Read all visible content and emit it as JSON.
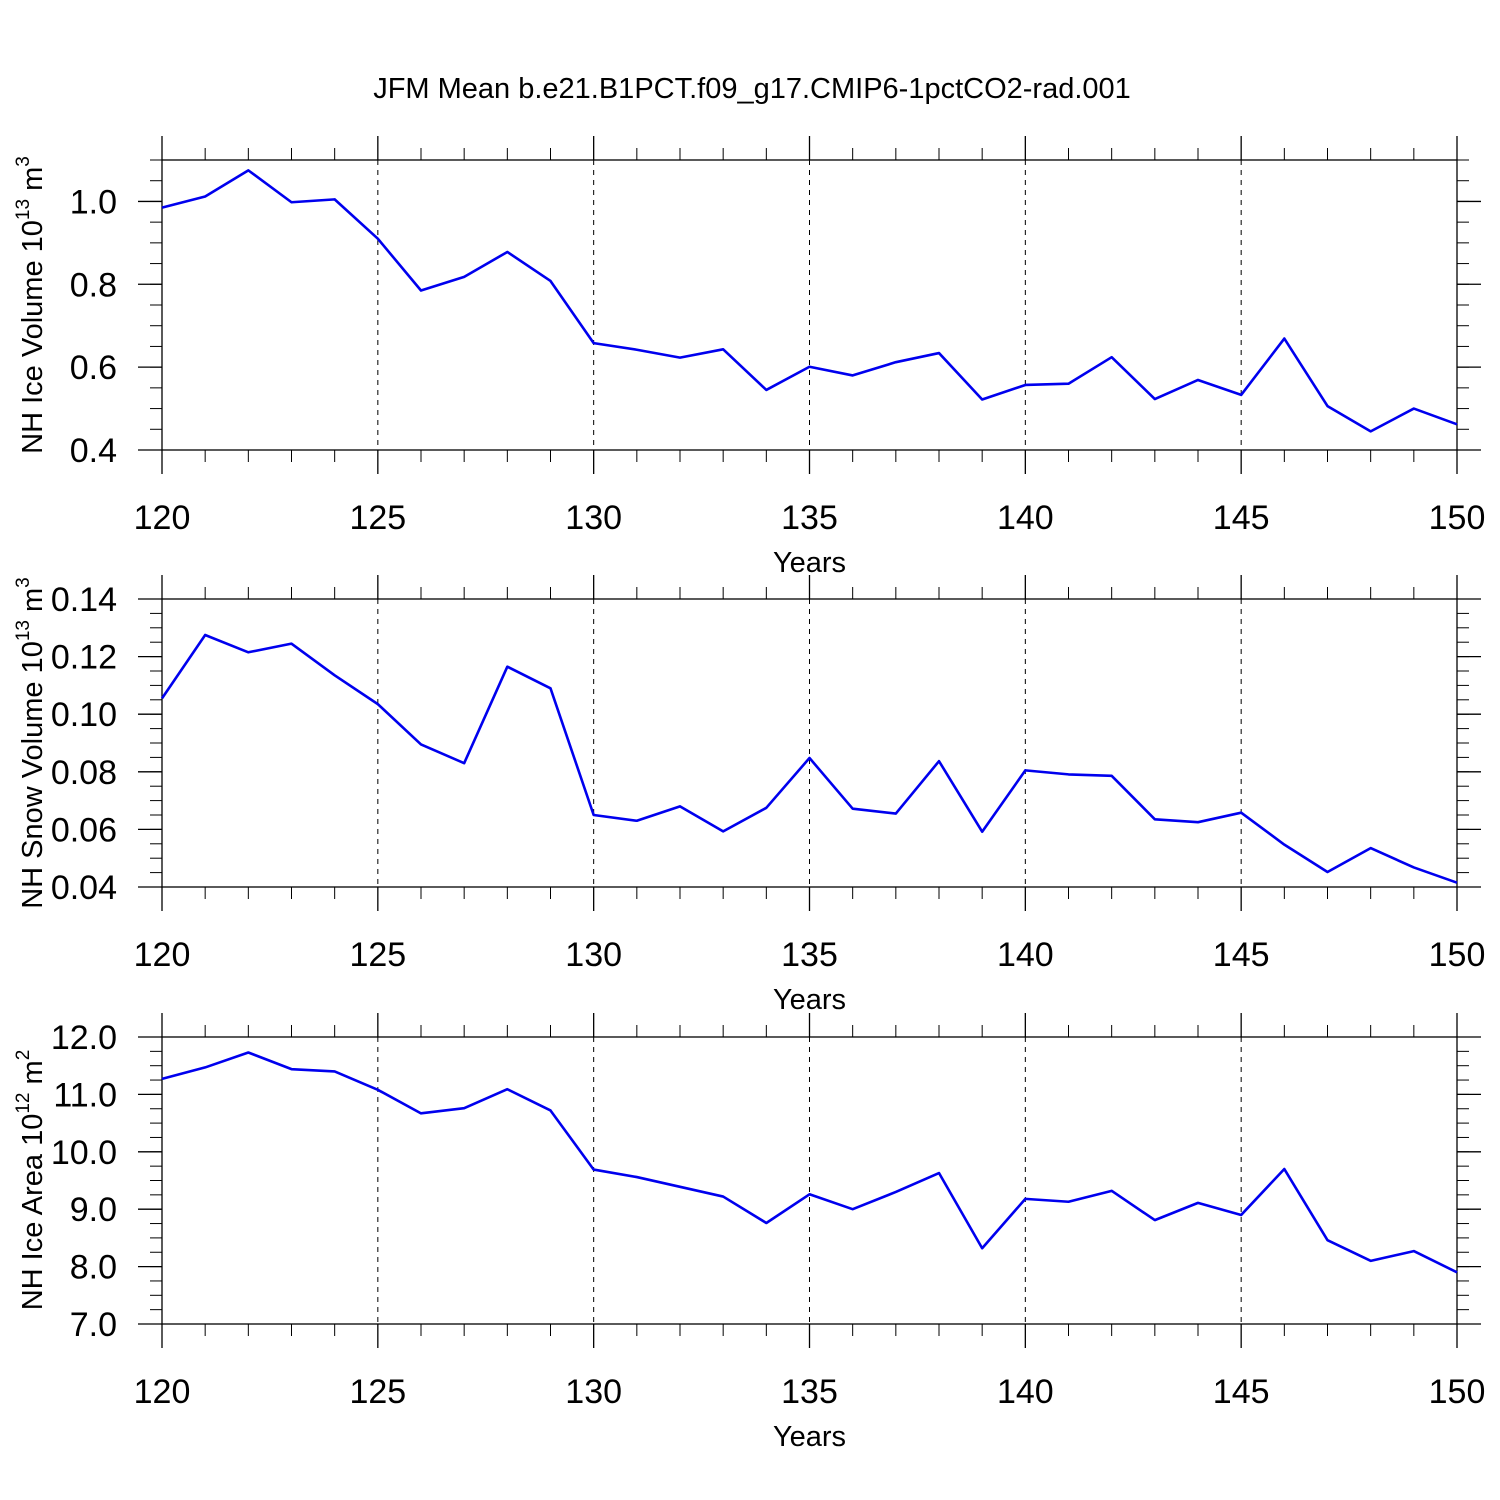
{
  "title": "JFM Mean b.e21.B1PCT.f09_g17.CMIP6-1pctCO2-rad.001",
  "chart_data": [
    {
      "type": "line",
      "xlabel": "Years",
      "ylabel": {
        "text": "NH Ice Volume 10",
        "sup": "13",
        "unit": " m",
        "unit_sup": "3"
      },
      "xlim": [
        120,
        150
      ],
      "ylim": [
        0.4,
        1.1
      ],
      "x_ticks": [
        120,
        125,
        130,
        135,
        140,
        145,
        150
      ],
      "x_tick_labels": [
        "120",
        "125",
        "130",
        "135",
        "140",
        "145",
        "150"
      ],
      "y_ticks": [
        0.4,
        0.6,
        0.8,
        1.0
      ],
      "y_tick_labels": [
        "0.4",
        "0.6",
        "0.8",
        "1.0"
      ],
      "y_minor_step": 0.05,
      "grid": "dashed vertical at major x ticks",
      "color": "#0000ee",
      "x": [
        120,
        121,
        122,
        123,
        124,
        125,
        126,
        127,
        128,
        129,
        130,
        131,
        132,
        133,
        134,
        135,
        136,
        137,
        138,
        139,
        140,
        141,
        142,
        143,
        144,
        145,
        146,
        147,
        148,
        149,
        150
      ],
      "values": [
        0.985,
        1.012,
        1.075,
        0.998,
        1.005,
        0.91,
        0.785,
        0.818,
        0.878,
        0.808,
        0.658,
        0.642,
        0.623,
        0.643,
        0.545,
        0.601,
        0.58,
        0.612,
        0.634,
        0.522,
        0.557,
        0.56,
        0.624,
        0.523,
        0.569,
        0.533,
        0.669,
        0.506,
        0.445,
        0.5,
        0.462
      ]
    },
    {
      "type": "line",
      "xlabel": "Years",
      "ylabel": {
        "text": "NH Snow Volume 10",
        "sup": "13",
        "unit": " m",
        "unit_sup": "3"
      },
      "xlim": [
        120,
        150
      ],
      "ylim": [
        0.04,
        0.14
      ],
      "x_ticks": [
        120,
        125,
        130,
        135,
        140,
        145,
        150
      ],
      "x_tick_labels": [
        "120",
        "125",
        "130",
        "135",
        "140",
        "145",
        "150"
      ],
      "y_ticks": [
        0.04,
        0.06,
        0.08,
        0.1,
        0.12,
        0.14
      ],
      "y_tick_labels": [
        "0.04",
        "0.06",
        "0.08",
        "0.10",
        "0.12",
        "0.14"
      ],
      "y_minor_step": 0.005,
      "grid": "dashed vertical at major x ticks",
      "color": "#0000ee",
      "x": [
        120,
        121,
        122,
        123,
        124,
        125,
        126,
        127,
        128,
        129,
        130,
        131,
        132,
        133,
        134,
        135,
        136,
        137,
        138,
        139,
        140,
        141,
        142,
        143,
        144,
        145,
        146,
        147,
        148,
        149,
        150
      ],
      "values": [
        0.1055,
        0.1275,
        0.1215,
        0.1245,
        0.1135,
        0.1035,
        0.0895,
        0.083,
        0.1165,
        0.109,
        0.065,
        0.063,
        0.068,
        0.0593,
        0.0675,
        0.0848,
        0.0672,
        0.0655,
        0.0837,
        0.0592,
        0.0805,
        0.0791,
        0.0786,
        0.0635,
        0.0625,
        0.0658,
        0.0547,
        0.0452,
        0.0535,
        0.0468,
        0.0415
      ]
    },
    {
      "type": "line",
      "xlabel": "Years",
      "ylabel": {
        "text": "NH Ice Area 10",
        "sup": "12",
        "unit": " m",
        "unit_sup": "2"
      },
      "xlim": [
        120,
        150
      ],
      "ylim": [
        7.0,
        12.0
      ],
      "x_ticks": [
        120,
        125,
        130,
        135,
        140,
        145,
        150
      ],
      "x_tick_labels": [
        "120",
        "125",
        "130",
        "135",
        "140",
        "145",
        "150"
      ],
      "y_ticks": [
        7.0,
        8.0,
        9.0,
        10.0,
        11.0,
        12.0
      ],
      "y_tick_labels": [
        "7.0",
        "8.0",
        "9.0",
        "10.0",
        "11.0",
        "12.0"
      ],
      "y_minor_step": 0.25,
      "grid": "dashed vertical at major x ticks",
      "color": "#0000ee",
      "x": [
        120,
        121,
        122,
        123,
        124,
        125,
        126,
        127,
        128,
        129,
        130,
        131,
        132,
        133,
        134,
        135,
        136,
        137,
        138,
        139,
        140,
        141,
        142,
        143,
        144,
        145,
        146,
        147,
        148,
        149,
        150
      ],
      "values": [
        11.27,
        11.47,
        11.73,
        11.44,
        11.4,
        11.08,
        10.67,
        10.76,
        11.09,
        10.72,
        9.69,
        9.56,
        9.39,
        9.22,
        8.76,
        9.26,
        9.0,
        9.3,
        9.63,
        8.32,
        9.18,
        9.13,
        9.32,
        8.81,
        9.11,
        8.9,
        9.7,
        8.46,
        8.1,
        8.27,
        7.9
      ]
    }
  ]
}
